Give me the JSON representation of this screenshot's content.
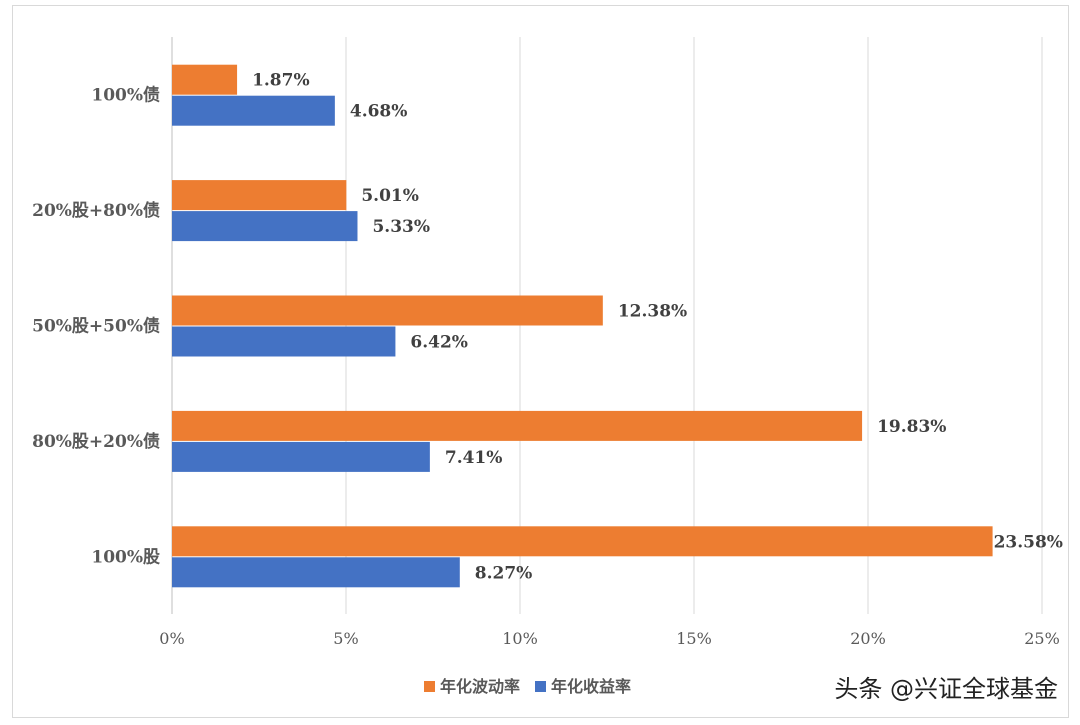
{
  "chart_data": {
    "type": "bar",
    "orientation": "horizontal",
    "categories": [
      "100%债",
      "20%股+80%债",
      "50%股+50%债",
      "80%股+20%债",
      "100%股"
    ],
    "series": [
      {
        "name": "年化波动率",
        "color": "#ED7D31",
        "values": [
          1.87,
          5.01,
          12.38,
          19.83,
          23.58
        ],
        "labels": [
          "1.87%",
          "5.01%",
          "12.38%",
          "19.83%",
          "23.58%"
        ]
      },
      {
        "name": "年化收益率",
        "color": "#4472C4",
        "values": [
          4.68,
          5.33,
          6.42,
          7.41,
          8.27
        ],
        "labels": [
          "4.68%",
          "5.33%",
          "6.42%",
          "7.41%",
          "8.27%"
        ]
      }
    ],
    "highlight_label_color": "#FF0000",
    "highlight_category": "20%股+80%债",
    "xlim": [
      0,
      25
    ],
    "xticks": [
      "0%",
      "5%",
      "10%",
      "15%",
      "20%",
      "25%"
    ],
    "grid": "vertical",
    "legend": "bottom",
    "title": "",
    "xlabel": "",
    "ylabel": ""
  },
  "watermark": "头条 @兴证全球基金"
}
